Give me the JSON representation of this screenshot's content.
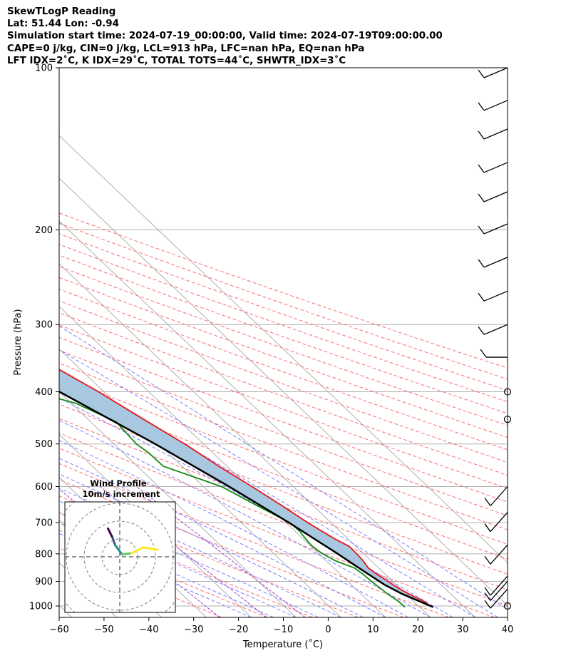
{
  "header": {
    "title": "SkewTLogP Reading",
    "location": "Lat: 51.44   Lon: -0.94",
    "times": "Simulation start time: 2024-07-19_00:00:00, Valid time: 2024-07-19T09:00:00.00",
    "params": "CAPE=0 j/kg, CIN=0 j/kg, LCL=913 hPa, LFC=nan hPa, EQ=nan hPa",
    "indices": "LFT IDX=2˚C, K IDX=29˚C, TOTAL TOTS=44˚C, SHWTR_IDX=3˚C"
  },
  "hodograph": {
    "title": "Wind Profile",
    "subtitle": "10m/s increment"
  },
  "chart_data": {
    "type": "line",
    "xlabel": "Temperature (˚C)",
    "ylabel": "Pressure (hPa)",
    "xlim": [
      -60,
      40
    ],
    "ylim": [
      1050,
      100
    ],
    "y_scale": "log",
    "x_ticks": [
      -60,
      -50,
      -40,
      -30,
      -20,
      -10,
      0,
      10,
      20,
      30,
      40
    ],
    "y_ticks": [
      100,
      200,
      300,
      400,
      500,
      600,
      700,
      800,
      900,
      1000
    ],
    "series": [
      {
        "role": "temperature",
        "color": "#e8141a",
        "points": [
          [
            1000,
            22.6
          ],
          [
            980,
            22.3
          ],
          [
            960,
            21.2
          ],
          [
            940,
            20.2
          ],
          [
            920,
            19.5
          ],
          [
            900,
            19.0
          ],
          [
            875,
            18.2
          ],
          [
            850,
            17.7
          ],
          [
            820,
            18.3
          ],
          [
            800,
            18.4
          ],
          [
            775,
            18.5
          ],
          [
            750,
            17.0
          ],
          [
            700,
            14.8
          ],
          [
            650,
            13.0
          ],
          [
            600,
            10.8
          ],
          [
            550,
            8.2
          ],
          [
            500,
            5.8
          ],
          [
            450,
            2.4
          ],
          [
            400,
            -1.2
          ],
          [
            350,
            -6.2
          ],
          [
            300,
            -11.8
          ],
          [
            275,
            -15.3
          ],
          [
            250,
            -20.0
          ],
          [
            225,
            -25.8
          ],
          [
            200,
            -31.8
          ],
          [
            185,
            -35.0
          ],
          [
            175,
            -37.2
          ],
          [
            150,
            -43.2
          ],
          [
            140,
            -45.5
          ],
          [
            125,
            -50.6
          ],
          [
            110,
            -55.8
          ],
          [
            100,
            -59.6
          ]
        ]
      },
      {
        "role": "dewpoint",
        "color": "#138a13",
        "points": [
          [
            1005,
            16.7
          ],
          [
            980,
            16.6
          ],
          [
            950,
            15.9
          ],
          [
            925,
            15.6
          ],
          [
            900,
            15.3
          ],
          [
            875,
            15.1
          ],
          [
            850,
            14.6
          ],
          [
            825,
            12.1
          ],
          [
            800,
            10.8
          ],
          [
            775,
            10.3
          ],
          [
            760,
            10.4
          ],
          [
            725,
            11.0
          ],
          [
            700,
            10.8
          ],
          [
            650,
            7.4
          ],
          [
            600,
            4.0
          ],
          [
            550,
            -4.2
          ],
          [
            520,
            -4.3
          ],
          [
            500,
            -5.0
          ],
          [
            455,
            -4.3
          ],
          [
            420,
            -9.0
          ],
          [
            385,
            -21.0
          ],
          [
            350,
            -14.6
          ],
          [
            330,
            -9.0
          ],
          [
            310,
            -9.0
          ],
          [
            280,
            -14.0
          ],
          [
            265,
            -16.0
          ],
          [
            250,
            -14.6
          ],
          [
            225,
            -20.0
          ],
          [
            205,
            -25.5
          ],
          [
            195,
            -24.0
          ],
          [
            185,
            -25.6
          ],
          [
            165,
            -32.0
          ],
          [
            155,
            -36.5
          ],
          [
            135,
            -53.7
          ],
          [
            100,
            -52.5
          ]
        ]
      },
      {
        "role": "parcel",
        "color": "#000000",
        "points": [
          [
            1005,
            23.0
          ],
          [
            950,
            19.2
          ],
          [
            913,
            17.4
          ],
          [
            850,
            15.6
          ],
          [
            800,
            14.2
          ],
          [
            700,
            10.6
          ],
          [
            600,
            5.7
          ],
          [
            500,
            -0.8
          ],
          [
            400,
            -9.9
          ],
          [
            300,
            -23.2
          ],
          [
            250,
            -32.5
          ],
          [
            200,
            -44.5
          ],
          [
            150,
            -60.8
          ],
          [
            110,
            -78.0
          ],
          [
            100,
            -83.7
          ]
        ]
      }
    ],
    "cape_fill_color": "#a7c8e0",
    "wind_barbs_pressure_hpa": [
      100,
      115,
      130,
      150,
      170,
      195,
      225,
      260,
      300,
      345,
      400,
      450,
      600,
      670,
      770,
      880,
      900,
      930,
      1000
    ],
    "dry_adiabat_color": "#ff6e6e",
    "moist_adiabat_color": "#7c7cff",
    "mixing_ratio_color": "#9f3fbf",
    "grid": true,
    "hodograph_points": [
      [
        -0.5,
        1.2
      ],
      [
        -0.3,
        0.8
      ],
      [
        -0.2,
        0.5
      ],
      [
        0.1,
        0.1
      ],
      [
        0.5,
        0.15
      ],
      [
        1.0,
        0.4
      ],
      [
        1.6,
        0.3
      ]
    ]
  }
}
